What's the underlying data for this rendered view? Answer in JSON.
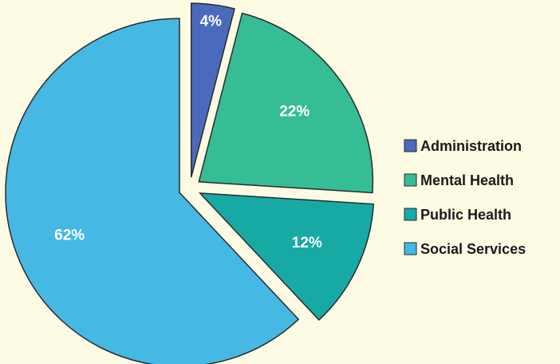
{
  "chart_data": {
    "type": "pie",
    "categories": [
      "Administration",
      "Mental Health",
      "Public Health",
      "Social Services"
    ],
    "values": [
      4,
      22,
      12,
      62
    ],
    "value_labels": [
      "4%",
      "22%",
      "12%",
      "62%"
    ],
    "colors": [
      "#4a6bbd",
      "#35be96",
      "#17aaa5",
      "#45b8e4"
    ],
    "legend": "right"
  }
}
